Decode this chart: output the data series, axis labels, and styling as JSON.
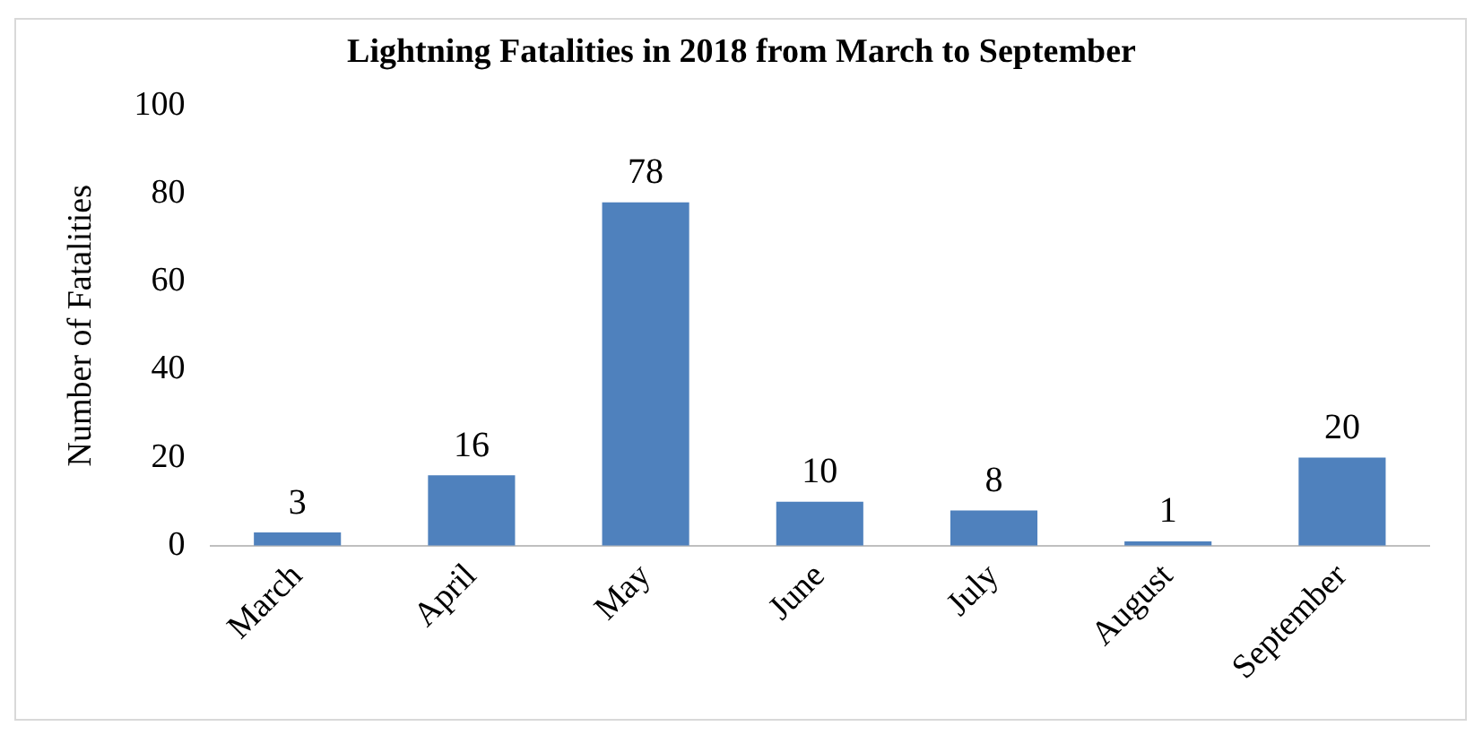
{
  "chart_data": {
    "type": "bar",
    "title": "Lightning Fatalities in 2018 from March to September",
    "ylabel": "Number of Fatalities",
    "categories": [
      "March",
      "April",
      "May",
      "June",
      "July",
      "August",
      "September"
    ],
    "values": [
      3,
      16,
      78,
      10,
      8,
      1,
      20
    ],
    "color": "#4f81bd",
    "ylim": [
      0,
      100
    ],
    "yticks": [
      0,
      20,
      40,
      60,
      80,
      100
    ],
    "grid": false,
    "legend": false,
    "data_labels": true
  }
}
